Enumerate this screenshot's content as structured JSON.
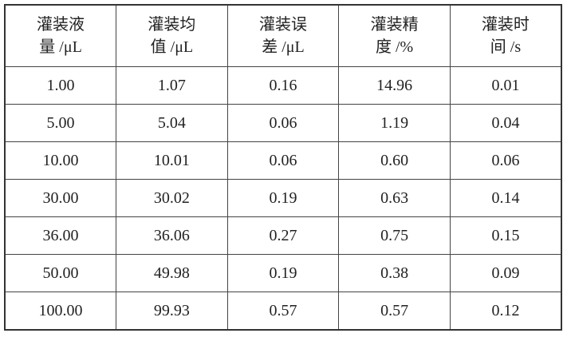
{
  "table": {
    "header": [
      [
        "灌装液",
        "量 /μL"
      ],
      [
        "灌装均",
        "值 /μL"
      ],
      [
        "灌装误",
        "差 /μL"
      ],
      [
        "灌装精",
        "度 /%"
      ],
      [
        "灌装时",
        "间 /s"
      ]
    ],
    "rows": [
      [
        "1.00",
        "1.07",
        "0.16",
        "14.96",
        "0.01"
      ],
      [
        "5.00",
        "5.04",
        "0.06",
        "1.19",
        "0.04"
      ],
      [
        "10.00",
        "10.01",
        "0.06",
        "0.60",
        "0.06"
      ],
      [
        "30.00",
        "30.02",
        "0.19",
        "0.63",
        "0.14"
      ],
      [
        "36.00",
        "36.06",
        "0.27",
        "0.75",
        "0.15"
      ],
      [
        "50.00",
        "49.98",
        "0.19",
        "0.38",
        "0.09"
      ],
      [
        "100.00",
        "99.93",
        "0.57",
        "0.57",
        "0.12"
      ]
    ]
  }
}
